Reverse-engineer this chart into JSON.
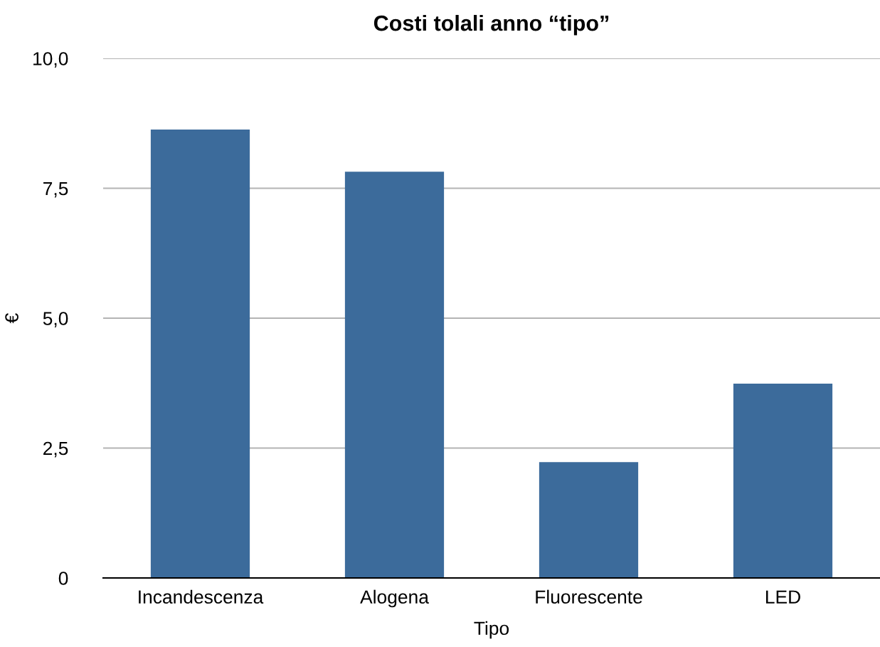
{
  "chart_data": {
    "type": "bar",
    "title": "Costi tolali anno “tipo”",
    "xlabel": "Tipo",
    "ylabel": "€",
    "categories": [
      "Incandescenza",
      "Alogena",
      "Fluorescente",
      "LED"
    ],
    "values": [
      8.63,
      7.82,
      2.23,
      3.74
    ],
    "color": "#3c6b9b",
    "ylim": [
      0,
      10
    ],
    "yticks": [
      {
        "value": 0,
        "label": "0"
      },
      {
        "value": 2.5,
        "label": "2,5"
      },
      {
        "value": 5,
        "label": "5,0"
      },
      {
        "value": 7.5,
        "label": "7,5"
      },
      {
        "value": 10,
        "label": "10,0"
      }
    ],
    "grid": "y",
    "legend": false
  }
}
